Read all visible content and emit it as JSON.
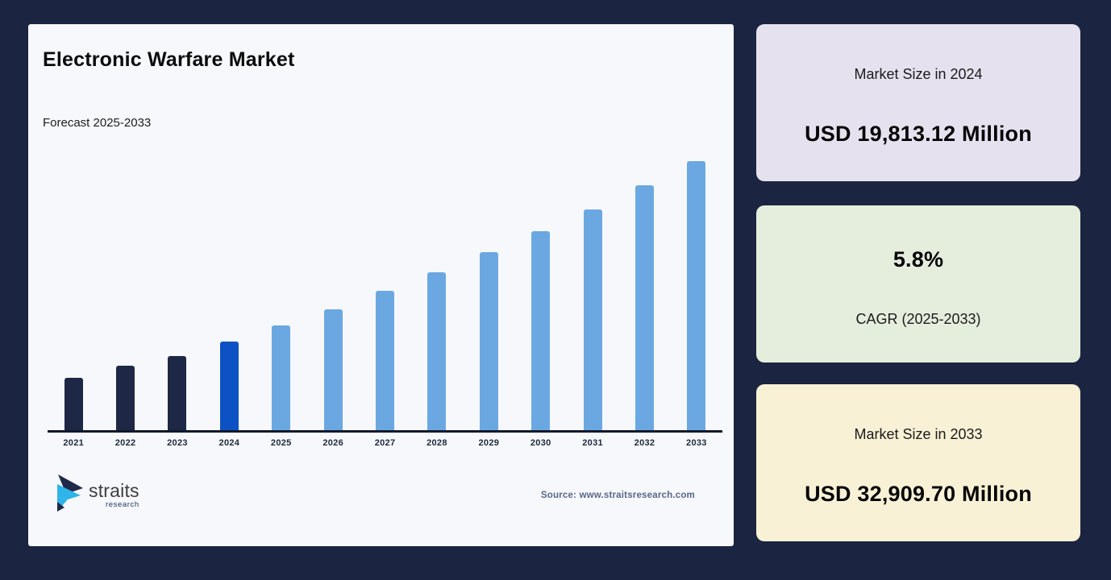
{
  "theme": {
    "background": "#1b2440",
    "panel_bg": "#f6f8fb",
    "axis_color": "#10192b",
    "tick_label_color": "#1e293b",
    "source_color": "#57678a",
    "logo_navy": "#1f2a4a",
    "logo_cyan": "#2fb4e9"
  },
  "panel": {
    "title": "Electronic Warfare Market",
    "subtitle": "Forecast 2025-2033",
    "source": "Source: www.straitsresearch.com",
    "logo_brand": "straits",
    "logo_sub": "research"
  },
  "chart_data": {
    "type": "bar",
    "title": "Electronic Warfare Market",
    "subtitle": "Forecast 2025-2033",
    "unit": "USD Million",
    "categories": [
      "2021",
      "2022",
      "2023",
      "2024",
      "2025",
      "2026",
      "2027",
      "2028",
      "2029",
      "2030",
      "2031",
      "2032",
      "2033"
    ],
    "values": [
      17200,
      18050,
      18760,
      19813.12,
      20962,
      22178,
      23464,
      24825,
      26265,
      27789,
      29400,
      31106,
      32909.7
    ],
    "anchor_values": {
      "2024": 19813.12,
      "2033": 32909.7,
      "cagr_pct_2025_2033": 5.8
    },
    "ylim": [
      13400,
      33000
    ],
    "grid": false,
    "legend": "none",
    "bar_color_roles": [
      "historical",
      "historical",
      "historical",
      "base_year",
      "forecast",
      "forecast",
      "forecast",
      "forecast",
      "forecast",
      "forecast",
      "forecast",
      "forecast",
      "forecast"
    ],
    "colors": {
      "historical": "#1e2746",
      "base_year": "#0c52c4",
      "forecast": "#6ba8e2"
    }
  },
  "cards": [
    {
      "label": "Market Size in 2024",
      "value": "USD 19,813.12 Million",
      "bg": "#e5e1ef"
    },
    {
      "value": "5.8%",
      "label": "CAGR (2025-2033)",
      "bg": "#e5eddd"
    },
    {
      "label": "Market Size in 2033",
      "value": "USD 32,909.70 Million",
      "bg": "#f8f1d5"
    }
  ]
}
